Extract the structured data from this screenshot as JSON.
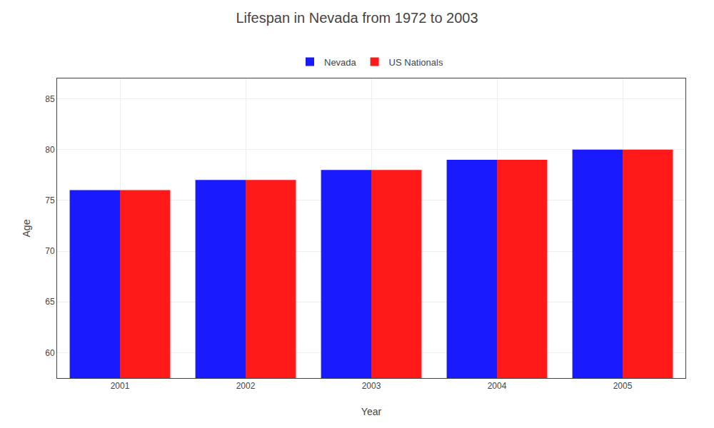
{
  "chart_data": {
    "type": "bar",
    "title": "Lifespan in Nevada from 1972 to 2003",
    "xlabel": "Year",
    "ylabel": "Age",
    "categories": [
      "2001",
      "2002",
      "2003",
      "2004",
      "2005"
    ],
    "series": [
      {
        "name": "Nevada",
        "color": "#1a1aff",
        "values": [
          76,
          77,
          78,
          79,
          80
        ]
      },
      {
        "name": "US Nationals",
        "color": "#ff1a1a",
        "values": [
          76,
          77,
          78,
          79,
          80
        ]
      }
    ],
    "ylim": [
      57.5,
      87
    ],
    "yticks": [
      60,
      65,
      70,
      75,
      80,
      85
    ],
    "grid": true,
    "legend": "top"
  }
}
